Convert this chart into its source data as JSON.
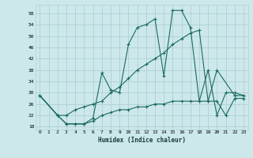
{
  "title": "",
  "xlabel": "Humidex (Indice chaleur)",
  "ylabel": "",
  "bg_color": "#cce8ea",
  "grid_color": "#b0d0d4",
  "line_color": "#1a6b60",
  "ylim": [
    17,
    61
  ],
  "xlim": [
    -0.5,
    23.5
  ],
  "yticks": [
    18,
    22,
    26,
    30,
    34,
    38,
    42,
    46,
    50,
    54,
    58
  ],
  "xticks": [
    0,
    1,
    2,
    3,
    4,
    5,
    6,
    7,
    8,
    9,
    10,
    11,
    12,
    13,
    14,
    15,
    16,
    17,
    18,
    19,
    20,
    21,
    22,
    23
  ],
  "xtick_labels": [
    "0",
    "1",
    "2",
    "3",
    "4",
    "5",
    "6",
    "7",
    "8",
    "9",
    "10",
    "11",
    "12",
    "13",
    "14",
    "15",
    "16",
    "17",
    "18",
    "19",
    "20",
    "21",
    "22",
    "23"
  ],
  "line1_x": [
    0,
    2,
    3,
    4,
    5,
    6,
    7,
    8,
    9,
    10,
    11,
    12,
    13,
    14,
    15,
    16,
    17,
    18,
    19,
    20,
    21,
    22,
    23
  ],
  "line1_y": [
    29,
    22,
    19,
    19,
    19,
    21,
    37,
    31,
    30,
    47,
    53,
    54,
    56,
    36,
    59,
    59,
    53,
    27,
    38,
    22,
    30,
    30,
    29
  ],
  "line2_x": [
    0,
    2,
    3,
    4,
    5,
    6,
    7,
    8,
    9,
    10,
    11,
    12,
    13,
    14,
    15,
    16,
    17,
    18,
    19,
    20,
    22,
    23
  ],
  "line2_y": [
    29,
    22,
    22,
    24,
    25,
    26,
    27,
    30,
    32,
    35,
    38,
    40,
    42,
    44,
    47,
    49,
    51,
    52,
    27,
    38,
    29,
    29
  ],
  "line3_x": [
    0,
    2,
    3,
    4,
    5,
    6,
    7,
    8,
    9,
    10,
    11,
    12,
    13,
    14,
    15,
    16,
    17,
    18,
    19,
    20,
    21,
    22,
    23
  ],
  "line3_y": [
    29,
    22,
    19,
    19,
    19,
    20,
    22,
    23,
    24,
    24,
    25,
    25,
    26,
    26,
    27,
    27,
    27,
    27,
    27,
    27,
    22,
    28,
    28
  ]
}
